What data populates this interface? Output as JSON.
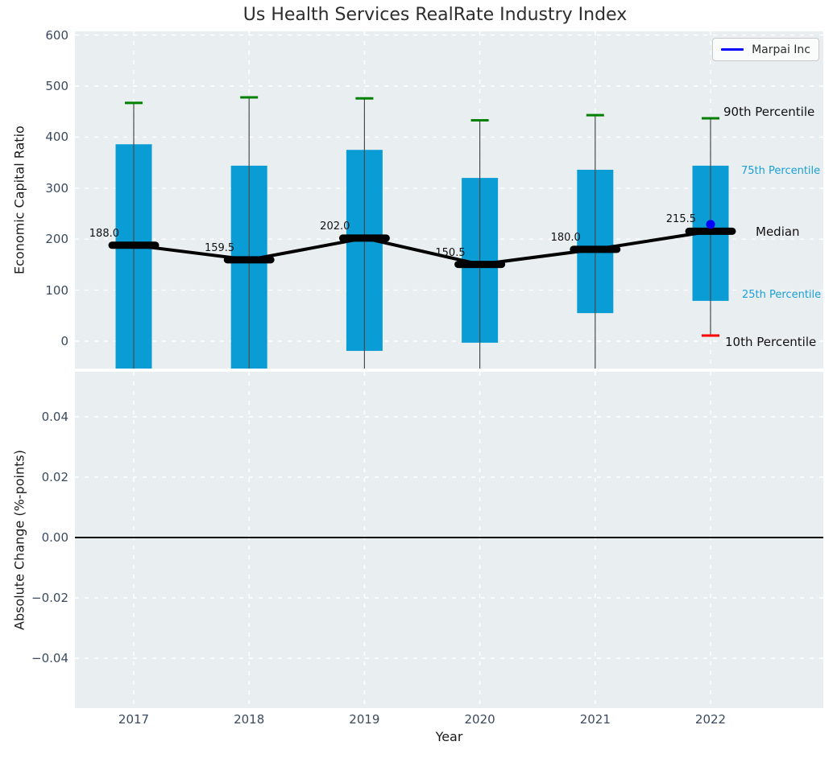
{
  "title": "Us Health Services RealRate Industry Index",
  "legend": {
    "label": "Marpai Inc"
  },
  "xlabel": "Year",
  "top_axes": {
    "ylabel": "Economic Capital Ratio",
    "yticks": [
      600,
      500,
      400,
      300,
      200,
      100,
      0
    ]
  },
  "bottom_axes": {
    "ylabel": "Absolute Change (%-points)",
    "yticks": [
      {
        "label": "0.04",
        "value": 0.04
      },
      {
        "label": "0.02",
        "value": 0.02
      },
      {
        "label": "0.00",
        "value": 0.0
      },
      {
        "label": "−0.02",
        "value": -0.02
      },
      {
        "label": "−0.04",
        "value": -0.04
      }
    ],
    "zero_line": true
  },
  "annotations": [
    {
      "text": "90th Percentile",
      "tone": "dark",
      "size": "large"
    },
    {
      "text": "75th Percentile",
      "tone": "accent",
      "size": "small"
    },
    {
      "text": "Median",
      "tone": "dark",
      "size": "large"
    },
    {
      "text": "25th Percentile",
      "tone": "accent",
      "size": "small"
    },
    {
      "text": "10th Percentile",
      "tone": "dark",
      "size": "large"
    }
  ],
  "colors": {
    "bar": "#0a9dd5",
    "accent_text": "#1b9fd8",
    "p90_cap": "#008000",
    "p10_cap": "#ff0000",
    "marpai": "#0000ff",
    "median": "#000000",
    "whisker": "#4a4a4a",
    "plot_bg": "#e9eef0",
    "grid": "#ffffff",
    "tick_text": "#3b4a5f"
  },
  "chart_data": {
    "type": "bar",
    "subtype": "percentile-box-with-median-line",
    "title": "Us Health Services RealRate Industry Index",
    "xlabel": "Year",
    "ylabel_top": "Economic Capital Ratio",
    "ylabel_bottom": "Absolute Change (%-points)",
    "categories": [
      "2017",
      "2018",
      "2019",
      "2020",
      "2021",
      "2022"
    ],
    "series": [
      {
        "name": "90th Percentile",
        "values": [
          467,
          478,
          476,
          433,
          443,
          437
        ]
      },
      {
        "name": "75th Percentile",
        "values": [
          386,
          344,
          375,
          320,
          336,
          344
        ]
      },
      {
        "name": "Median",
        "values": [
          188.0,
          159.5,
          202.0,
          150.5,
          180.0,
          215.5
        ]
      },
      {
        "name": "25th Percentile",
        "values": [
          null,
          null,
          -19,
          -3,
          55,
          79
        ]
      },
      {
        "name": "10th Percentile",
        "values": [
          null,
          null,
          null,
          null,
          null,
          11
        ]
      },
      {
        "name": "Marpai Inc",
        "values": [
          null,
          null,
          null,
          null,
          null,
          229
        ]
      }
    ],
    "median_labels": [
      "188.0",
      "159.5",
      "202.0",
      "150.5",
      "180.0",
      "215.5"
    ],
    "ylim_top": [
      -54,
      606
    ],
    "ylim_bottom": [
      -0.056,
      0.053
    ],
    "grid": "white dashed, horizontal and vertical at category centers",
    "legend_position": "upper right",
    "bottom_panel_empty": true,
    "note_clipped": "null percentile values extend below the visible top-panel axis"
  }
}
